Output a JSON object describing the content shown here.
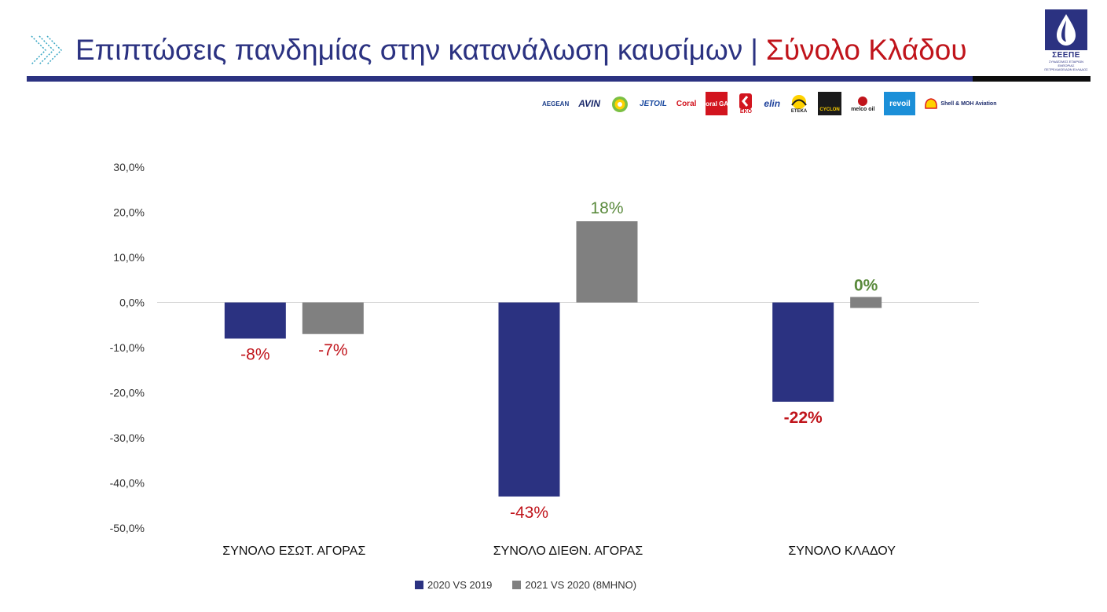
{
  "header": {
    "title_main": "Επιπτώσεις πανδημίας στην κατανάλωση καυσίμων",
    "title_separator": "|",
    "title_accent": "Σύνολο Κλάδου",
    "org_logo_text": "ΣΕΕΠΕ",
    "org_logo_subtext": "ΣΥΝΔΕΣΜΟΣ ΕΤΑΙΡΙΩΝ ΕΜΠΟΡΙΑΣ ΠΕΤΡΕΛΑΙΟΕΙΔΩΝ ΕΛΛΑΔΟΣ"
  },
  "brands": [
    {
      "name": "AEGEAN",
      "color": "#1d3f8a"
    },
    {
      "name": "AVIN",
      "color": "#1b2a6b"
    },
    {
      "name": "bp",
      "color": "#009900"
    },
    {
      "name": "JETOIL",
      "color": "#1b4aa0"
    },
    {
      "name": "Coral",
      "color": "#d2141e"
    },
    {
      "name": "Coral GAS",
      "color": "#d2141e"
    },
    {
      "name": "EKO",
      "color": "#d2141e"
    },
    {
      "name": "elin",
      "color": "#1b3f9a"
    },
    {
      "name": "ETEKA",
      "color": "#e3a400"
    },
    {
      "name": "CYCLON",
      "color": "#1a1a1a"
    },
    {
      "name": "melco oil",
      "color": "#c0141b"
    },
    {
      "name": "revoil",
      "color": "#1b8fd8"
    },
    {
      "name": "Shell & MOH Aviation",
      "color": "#1b2a6b"
    }
  ],
  "colors": {
    "series_2020": "#2b3281",
    "series_2021": "#808080",
    "negative_label": "#c0141b",
    "positive_label": "#5a8a3c"
  },
  "chart_data": {
    "type": "bar",
    "categories": [
      "ΣΥΝΟΛΟ ΕΣΩΤ. ΑΓΟΡΑΣ",
      "ΣΥΝΟΛΟ ΔΙΕΘΝ. ΑΓΟΡΑΣ",
      "ΣΥΝΟΛΟ ΚΛΑΔΟΥ"
    ],
    "series": [
      {
        "name": "2020 VS 2019",
        "values": [
          -8,
          -43,
          -22
        ],
        "labels": [
          "-8%",
          "-43%",
          "-22%"
        ]
      },
      {
        "name": "2021 VS 2020 (8ΜΗΝΟ)",
        "values": [
          -7,
          18,
          0.2
        ],
        "labels": [
          "-7%",
          "18%",
          "0%"
        ]
      }
    ],
    "ylim": [
      -50,
      30
    ],
    "yticks": [
      30,
      20,
      10,
      0,
      -10,
      -20,
      -30,
      -40,
      -50
    ],
    "ytick_labels": [
      "30,0%",
      "20,0%",
      "10,0%",
      "0,0%",
      "-10,0%",
      "-20,0%",
      "-30,0%",
      "-40,0%",
      "-50,0%"
    ],
    "grid": false,
    "legend_position": "bottom"
  }
}
